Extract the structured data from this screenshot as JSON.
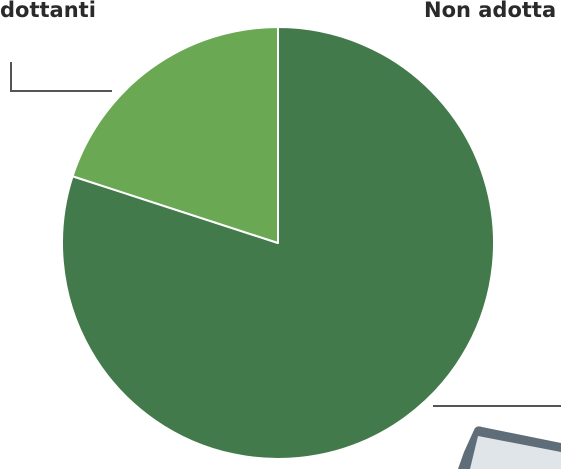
{
  "chart_data": {
    "type": "pie",
    "slices": [
      {
        "label": "Non adotta",
        "value": 80,
        "color": "#437a4c"
      },
      {
        "label": "dottanti",
        "value": 20,
        "color": "#6ba853"
      }
    ],
    "legend": "labels with leader lines",
    "grid": false
  }
}
